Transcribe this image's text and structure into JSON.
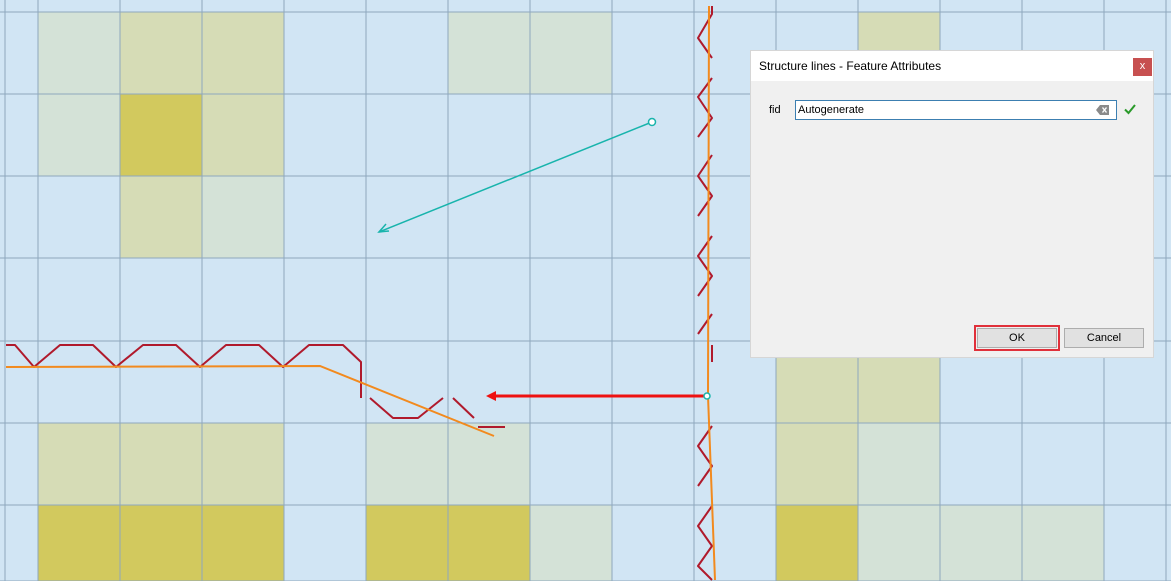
{
  "map": {
    "colors": {
      "background": "#d1e5f4",
      "grid": "#8ea8bd",
      "cell_light": "#d4e2d7",
      "cell_mid": "#d6dcb6",
      "cell_dark": "#d2c95e",
      "tick_line": "#b01a2c",
      "structure_line": "#f28a1e",
      "digitizing_line": "#18b4ac",
      "arrow": "#ee1111"
    }
  },
  "dialog": {
    "title": "Structure lines - Feature Attributes",
    "close_label": "x",
    "field_label": "fid",
    "field_value": "Autogenerate",
    "clear_icon": "clear-text-icon",
    "valid_icon": "checkmark-icon",
    "ok_label": "OK",
    "cancel_label": "Cancel"
  }
}
